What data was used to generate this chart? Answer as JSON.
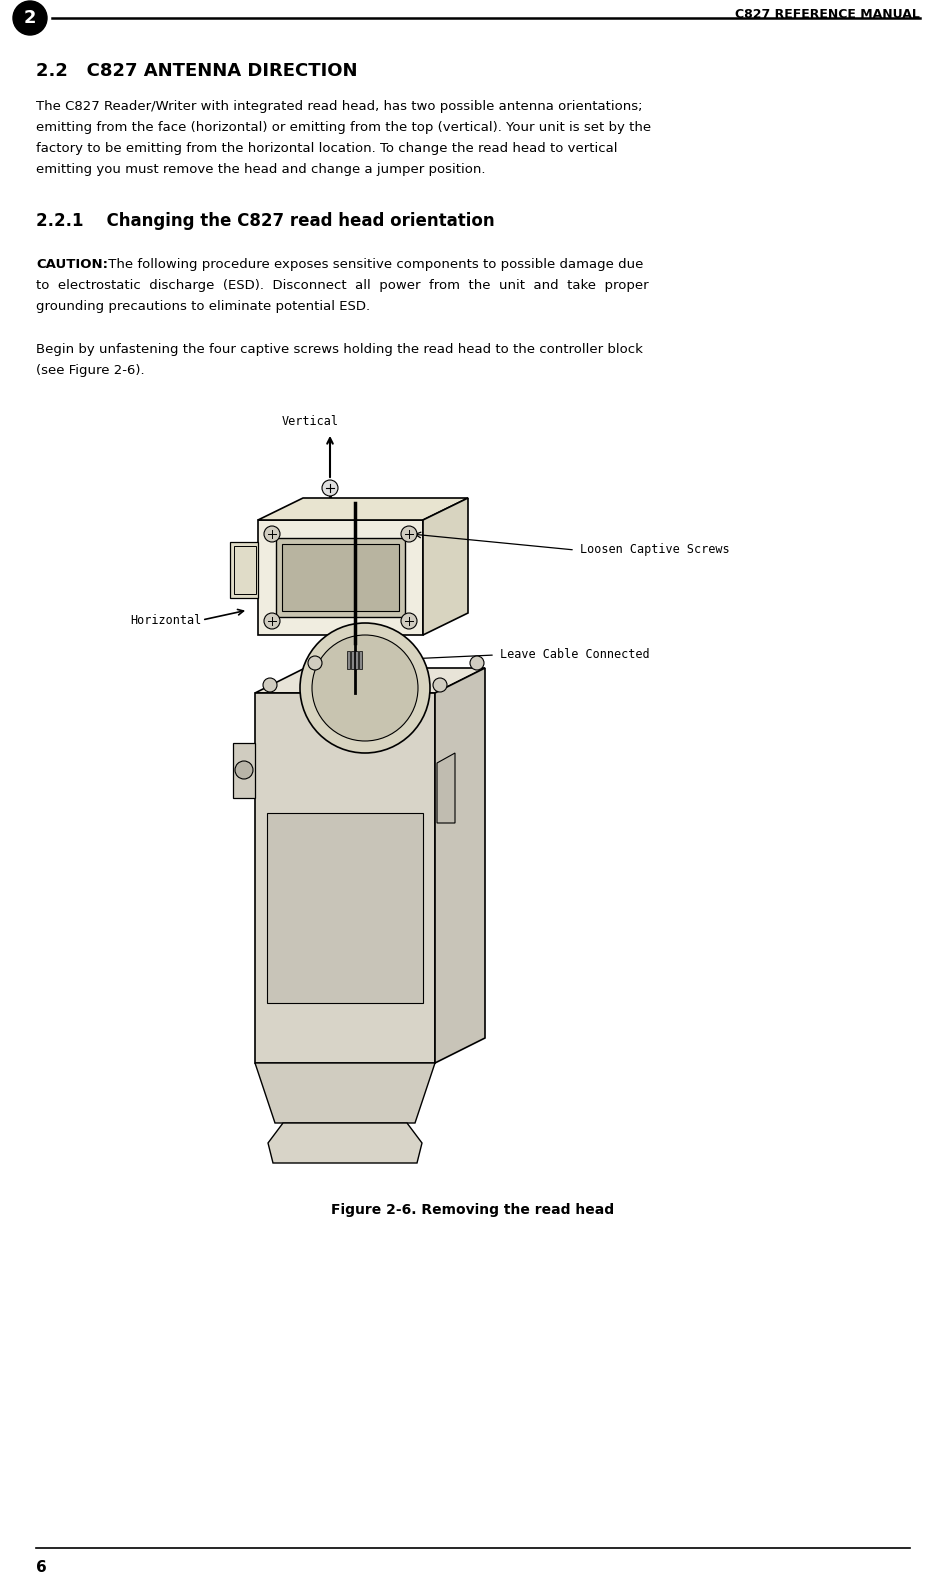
{
  "bg_color": "#ffffff",
  "page_width": 9.46,
  "page_height": 15.74,
  "dpi": 100,
  "header_text": "C827 REFERENCE MANUAL",
  "chapter_num": "2",
  "section_title": "2.2   C827 ANTENNA DIRECTION",
  "para1_lines": [
    "The C827 Reader/Writer with integrated read head, has two possible antenna orientations;",
    "emitting from the face (horizontal) or emitting from the top (vertical). Your unit is set by the",
    "factory to be emitting from the horizontal location. To change the read head to vertical",
    "emitting you must remove the head and change a jumper position."
  ],
  "subsection_title": "2.2.1    Changing the C827 read head orientation",
  "caution_bold": "CAUTION:",
  "caution_rest_lines": [
    " The following procedure exposes sensitive components to possible damage due",
    "to  electrostatic  discharge  (ESD).  Disconnect  all  power  from  the  unit  and  take  proper",
    "grounding precautions to eliminate potential ESD."
  ],
  "begin_lines": [
    "Begin by unfastening the four captive screws holding the read head to the controller block",
    "(see Figure 2-6)."
  ],
  "figure_caption": "Figure 2-6. Removing the read head",
  "footer_page": "6",
  "label_vertical": "Vertical",
  "label_horizontal": "Horizontal",
  "label_loosen": "Loosen Captive Screws",
  "label_cable": "Leave Cable Connected"
}
